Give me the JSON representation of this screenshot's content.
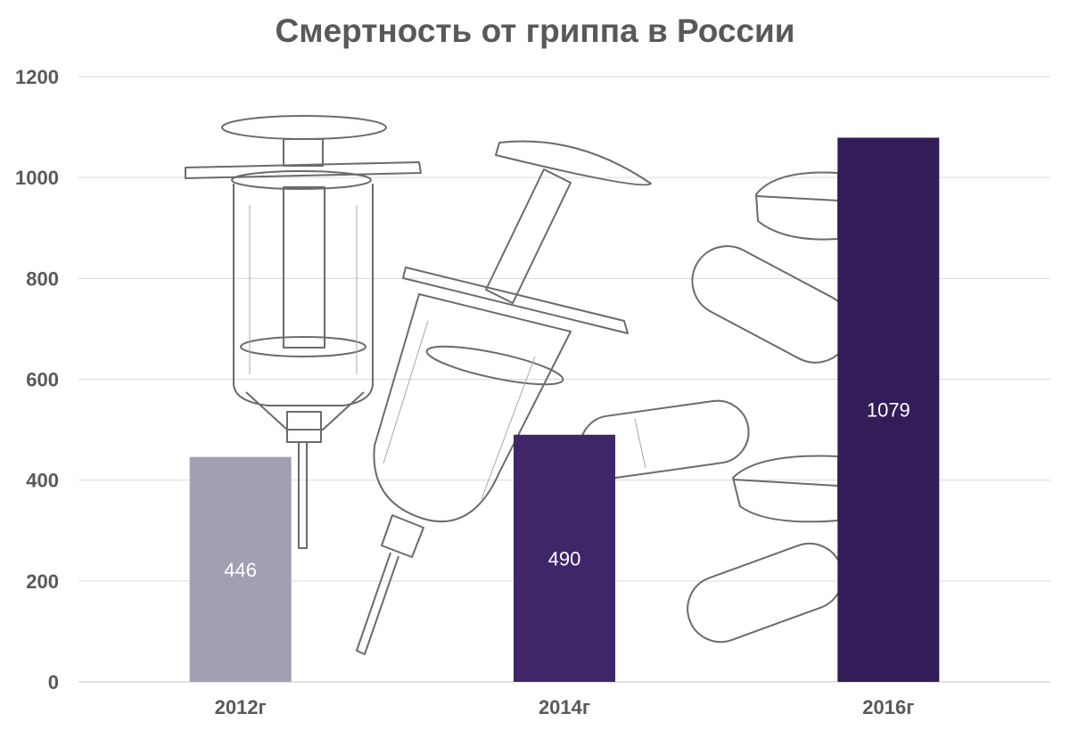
{
  "chart_data": {
    "type": "bar",
    "title": "Смертность от гриппа в России",
    "categories": [
      "2012г",
      "2014г",
      "2016г"
    ],
    "values": [
      446,
      490,
      1079
    ],
    "data_labels": [
      "446",
      "490",
      "1079"
    ],
    "bar_colors": [
      "#a29fb3",
      "#3f2669",
      "#321d58"
    ],
    "ylim": [
      0,
      1200
    ],
    "yticks": [
      0,
      200,
      400,
      600,
      800,
      1000,
      1200
    ],
    "ytick_labels": [
      "0",
      "200",
      "400",
      "600",
      "800",
      "1000",
      "1200"
    ],
    "xlabel": "",
    "ylabel": "",
    "grid": true,
    "legend": "none"
  },
  "colors": {
    "title": "#595959",
    "axis_text": "#595959",
    "gridline": "#d9d9d9",
    "data_label": "#ffffff"
  },
  "background_illustration": {
    "icons": [
      "syringe-icon",
      "syringe-icon",
      "capsule-icon",
      "pill-icon"
    ]
  }
}
